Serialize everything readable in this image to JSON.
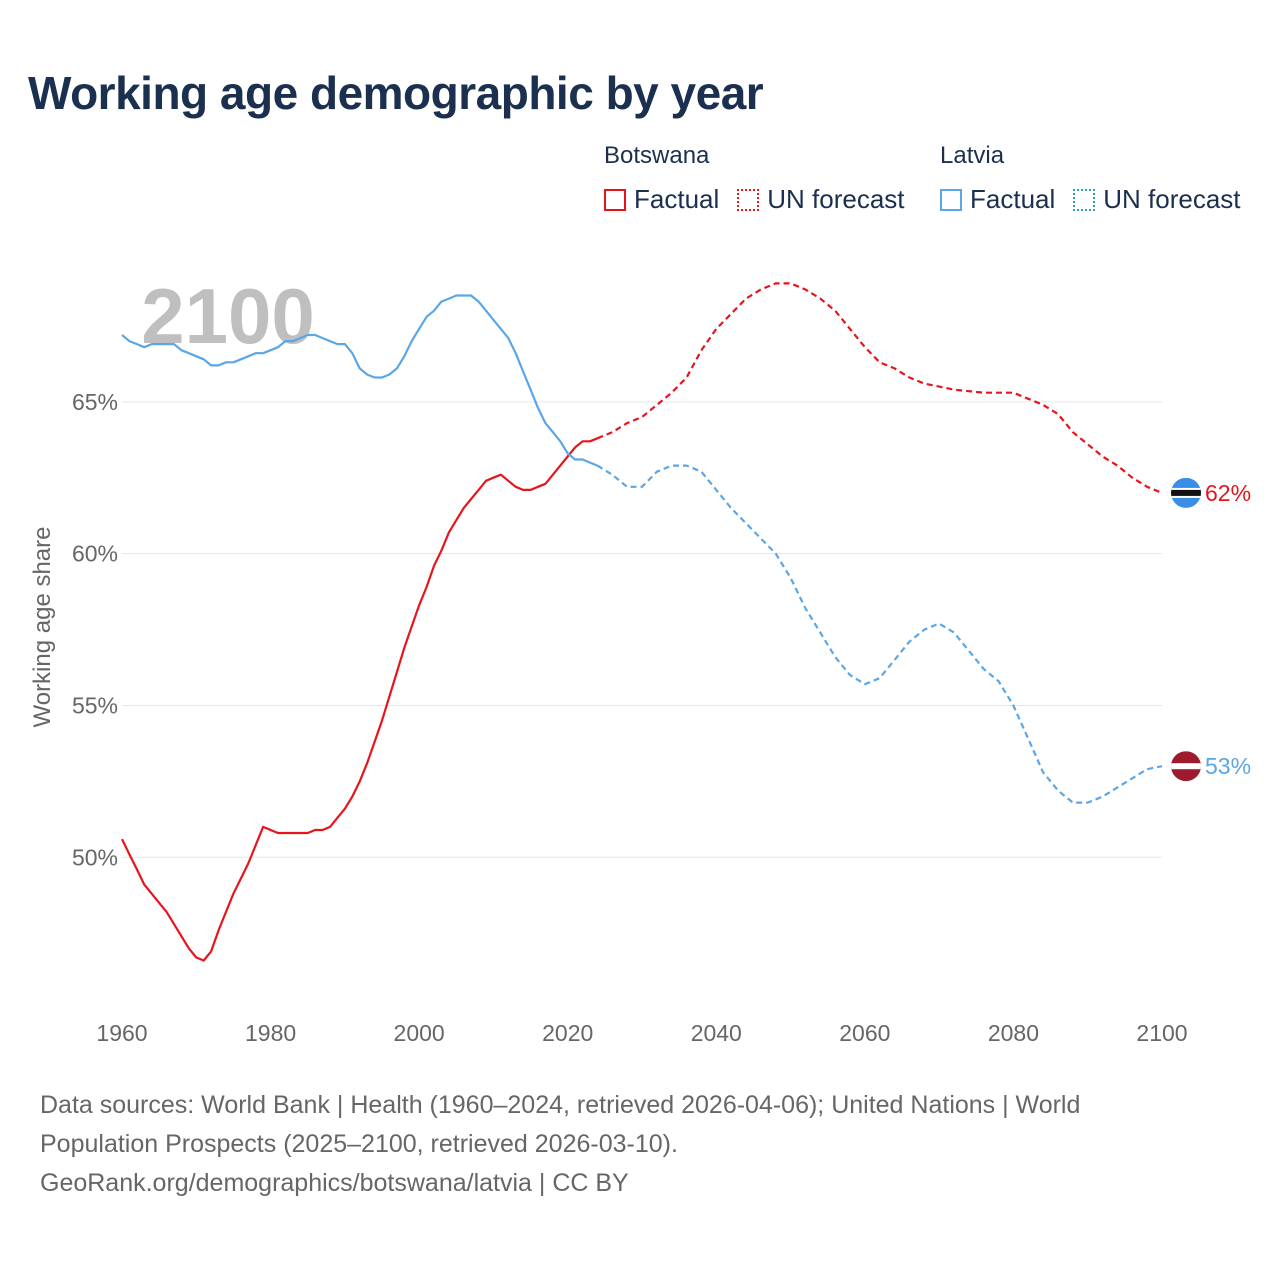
{
  "title": "Working age demographic by year",
  "legend": {
    "groups": [
      {
        "country": "Botswana",
        "color": "#e8141c",
        "factual": "Factual",
        "forecast": "UN forecast"
      },
      {
        "country": "Latvia",
        "color": "#5aa6e6",
        "factual": "Factual",
        "forecast": "UN forecast"
      }
    ]
  },
  "footer": {
    "line1": "Data sources: World Bank | Health (1960–2024, retrieved 2026-04-06); United Nations | World",
    "line2": "Population Prospects (2025–2100, retrieved 2026-03-10).",
    "line3": "GeoRank.org/demographics/botswana/latvia | CC BY"
  },
  "chart_data": {
    "type": "line",
    "title": "Working age demographic by year",
    "year_label": "2100",
    "xlabel": "",
    "ylabel": "Working age share",
    "xlim": [
      1960,
      2100
    ],
    "ylim": [
      45.3,
      70
    ],
    "x_ticks": [
      1960,
      1980,
      2000,
      2020,
      2040,
      2060,
      2080,
      2100
    ],
    "x_tick_labels": [
      "1960",
      "1980",
      "2000",
      "2020",
      "2040",
      "2060",
      "2080",
      "2100"
    ],
    "y_ticks": [
      50,
      55,
      60,
      65
    ],
    "y_tick_labels": [
      "50%",
      "55%",
      "60%",
      "65%"
    ],
    "grid": true,
    "series": [
      {
        "name": "Botswana",
        "color": "#e8141c",
        "end_label": "62%",
        "end_icon": "botswana-flag-icon",
        "factual": {
          "x": [
            1960,
            1961,
            1962,
            1963,
            1964,
            1965,
            1966,
            1967,
            1968,
            1969,
            1970,
            1971,
            1972,
            1973,
            1974,
            1975,
            1976,
            1977,
            1978,
            1979,
            1980,
            1981,
            1982,
            1983,
            1984,
            1985,
            1986,
            1987,
            1988,
            1989,
            1990,
            1991,
            1992,
            1993,
            1994,
            1995,
            1996,
            1997,
            1998,
            1999,
            2000,
            2001,
            2002,
            2003,
            2004,
            2005,
            2006,
            2007,
            2008,
            2009,
            2010,
            2011,
            2012,
            2013,
            2014,
            2015,
            2016,
            2017,
            2018,
            2019,
            2020,
            2021,
            2022,
            2023,
            2024
          ],
          "y": [
            50.6,
            50.1,
            49.6,
            49.1,
            48.8,
            48.5,
            48.2,
            47.8,
            47.4,
            47.0,
            46.7,
            46.6,
            46.9,
            47.6,
            48.2,
            48.8,
            49.3,
            49.8,
            50.4,
            51.0,
            50.9,
            50.8,
            50.8,
            50.8,
            50.8,
            50.8,
            50.9,
            50.9,
            51.0,
            51.3,
            51.6,
            52.0,
            52.5,
            53.1,
            53.8,
            54.5,
            55.3,
            56.1,
            56.9,
            57.6,
            58.3,
            58.9,
            59.6,
            60.1,
            60.7,
            61.1,
            61.5,
            61.8,
            62.1,
            62.4,
            62.5,
            62.6,
            62.4,
            62.2,
            62.1,
            62.1,
            62.2,
            62.3,
            62.6,
            62.9,
            63.2,
            63.5,
            63.7,
            63.7,
            63.8
          ]
        },
        "forecast": {
          "x": [
            2024,
            2026,
            2028,
            2030,
            2032,
            2034,
            2036,
            2038,
            2040,
            2042,
            2044,
            2046,
            2048,
            2050,
            2052,
            2054,
            2056,
            2058,
            2060,
            2062,
            2064,
            2066,
            2068,
            2070,
            2072,
            2074,
            2076,
            2078,
            2080,
            2082,
            2084,
            2086,
            2088,
            2090,
            2092,
            2094,
            2096,
            2098,
            2100
          ],
          "y": [
            63.8,
            64.0,
            64.3,
            64.5,
            64.9,
            65.3,
            65.8,
            66.7,
            67.4,
            67.9,
            68.4,
            68.7,
            68.9,
            68.9,
            68.7,
            68.4,
            68.0,
            67.4,
            66.8,
            66.3,
            66.1,
            65.8,
            65.6,
            65.5,
            65.4,
            65.35,
            65.3,
            65.3,
            65.3,
            65.1,
            64.9,
            64.6,
            64.0,
            63.6,
            63.2,
            62.9,
            62.5,
            62.2,
            62.0
          ]
        }
      },
      {
        "name": "Latvia",
        "color": "#5aa6e6",
        "end_label": "53%",
        "end_icon": "latvia-flag-icon",
        "factual": {
          "x": [
            1960,
            1961,
            1962,
            1963,
            1964,
            1965,
            1966,
            1967,
            1968,
            1969,
            1970,
            1971,
            1972,
            1973,
            1974,
            1975,
            1976,
            1977,
            1978,
            1979,
            1980,
            1981,
            1982,
            1983,
            1984,
            1985,
            1986,
            1987,
            1988,
            1989,
            1990,
            1991,
            1992,
            1993,
            1994,
            1995,
            1996,
            1997,
            1998,
            1999,
            2000,
            2001,
            2002,
            2003,
            2004,
            2005,
            2006,
            2007,
            2008,
            2009,
            2010,
            2011,
            2012,
            2013,
            2014,
            2015,
            2016,
            2017,
            2018,
            2019,
            2020,
            2021,
            2022,
            2023,
            2024
          ],
          "y": [
            67.2,
            67.0,
            66.9,
            66.8,
            66.9,
            66.9,
            66.9,
            66.9,
            66.7,
            66.6,
            66.5,
            66.4,
            66.2,
            66.2,
            66.3,
            66.3,
            66.4,
            66.5,
            66.6,
            66.6,
            66.7,
            66.8,
            67.0,
            67.0,
            67.1,
            67.2,
            67.2,
            67.1,
            67.0,
            66.9,
            66.9,
            66.6,
            66.1,
            65.9,
            65.8,
            65.8,
            65.9,
            66.1,
            66.5,
            67.0,
            67.4,
            67.8,
            68.0,
            68.3,
            68.4,
            68.5,
            68.5,
            68.5,
            68.3,
            68.0,
            67.7,
            67.4,
            67.1,
            66.6,
            66.0,
            65.4,
            64.8,
            64.3,
            64.0,
            63.7,
            63.3,
            63.1,
            63.1,
            63.0,
            62.9
          ]
        },
        "forecast": {
          "x": [
            2024,
            2026,
            2028,
            2030,
            2032,
            2034,
            2036,
            2038,
            2040,
            2042,
            2044,
            2046,
            2048,
            2050,
            2052,
            2054,
            2056,
            2058,
            2060,
            2062,
            2064,
            2066,
            2068,
            2070,
            2072,
            2074,
            2076,
            2078,
            2080,
            2082,
            2084,
            2086,
            2088,
            2090,
            2092,
            2094,
            2096,
            2098,
            2100
          ],
          "y": [
            62.9,
            62.6,
            62.2,
            62.2,
            62.7,
            62.9,
            62.9,
            62.7,
            62.1,
            61.5,
            61.0,
            60.5,
            60.0,
            59.2,
            58.2,
            57.4,
            56.6,
            56.0,
            55.7,
            55.9,
            56.5,
            57.1,
            57.5,
            57.7,
            57.4,
            56.8,
            56.2,
            55.8,
            55.0,
            53.9,
            52.8,
            52.2,
            51.8,
            51.8,
            52.0,
            52.3,
            52.6,
            52.9,
            53.0
          ]
        }
      }
    ]
  }
}
